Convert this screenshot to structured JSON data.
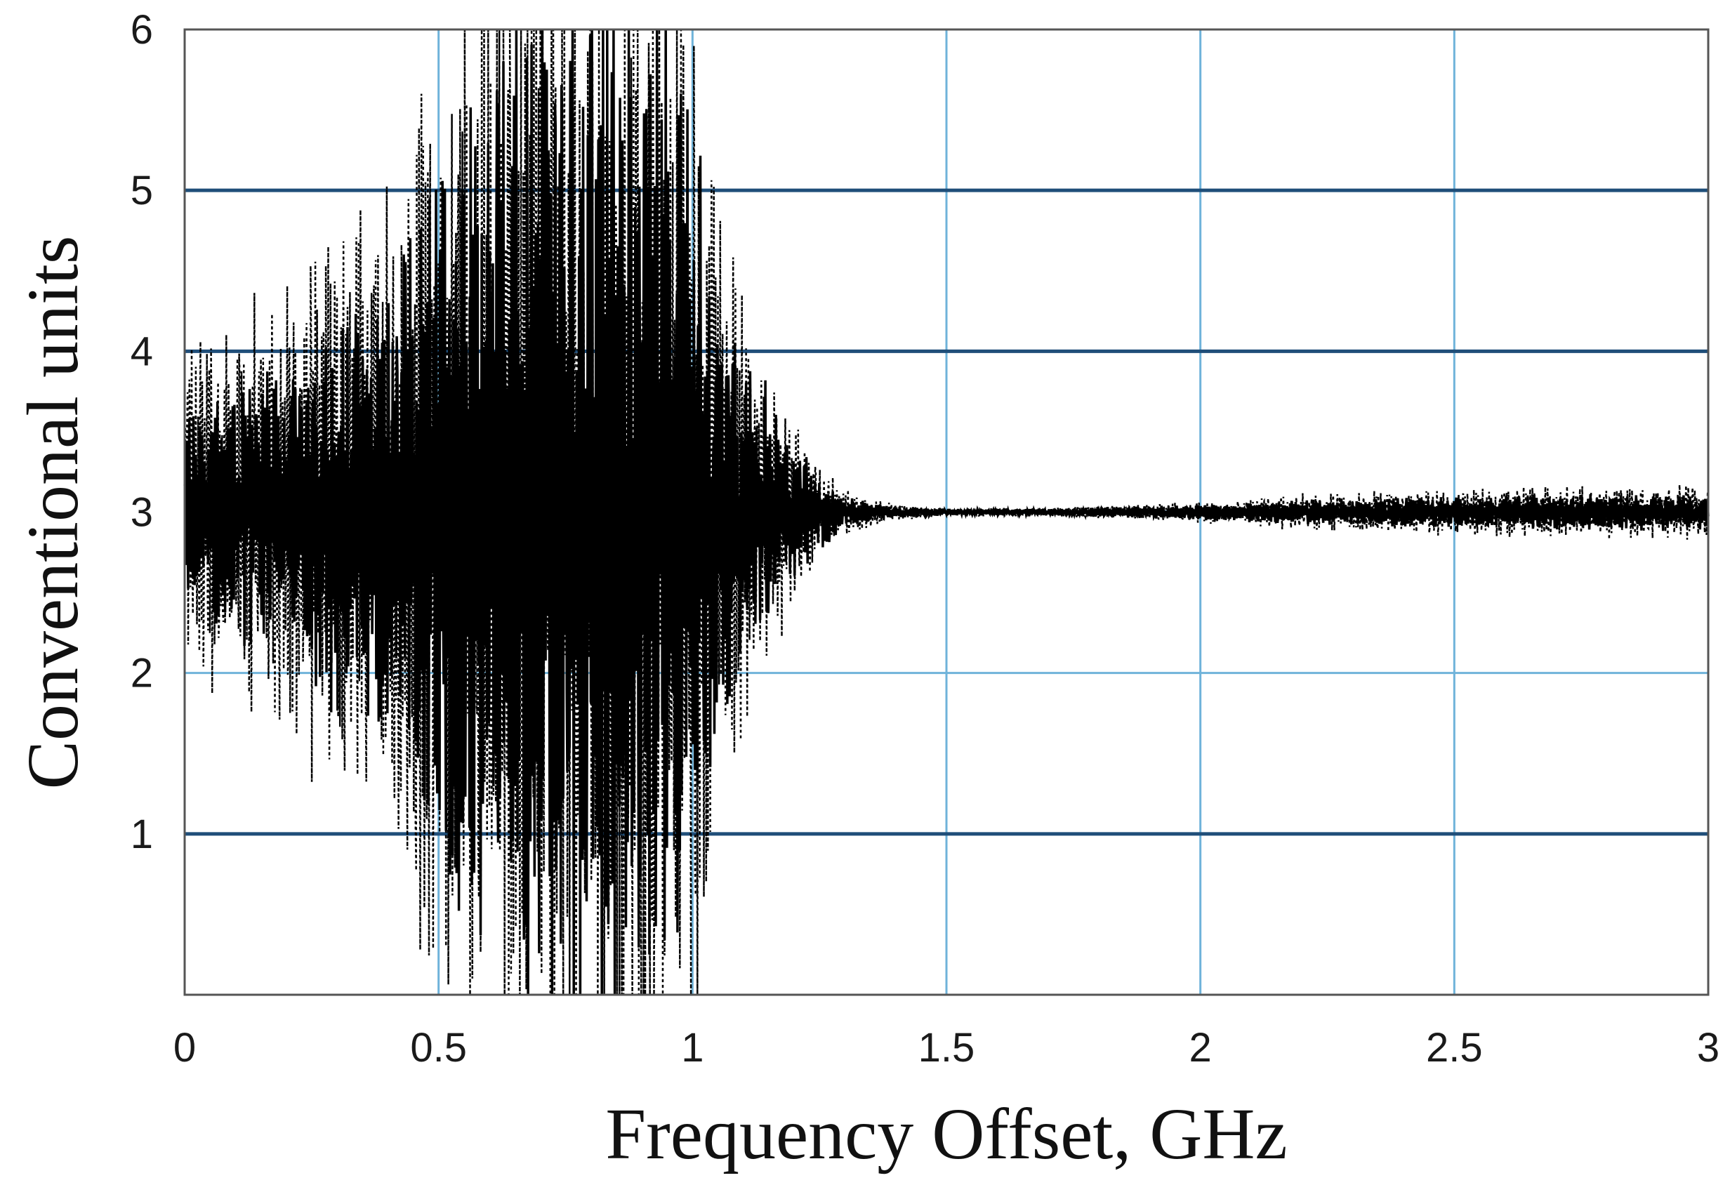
{
  "chart_data": {
    "type": "line",
    "title": "",
    "xlabel": "Frequency Offset, GHz",
    "ylabel": "Conventional units",
    "xlim": [
      0,
      3
    ],
    "ylim": [
      0,
      6
    ],
    "x_ticks": [
      "0",
      "0.5",
      "1",
      "1.5",
      "2",
      "2.5",
      "3"
    ],
    "y_ticks": [
      "1",
      "2",
      "3",
      "4",
      "5",
      "6"
    ],
    "grid": true,
    "legend": "none",
    "colors": {
      "grid_major": "#1f4e79",
      "grid_minor": "#6fb3da",
      "trace": "#000000",
      "frame": "#555555"
    },
    "series": [
      {
        "style": "dotted",
        "baseline": 3,
        "envelope": {
          "x": [
            0,
            0.1,
            0.2,
            0.3,
            0.4,
            0.5,
            0.6,
            0.7,
            0.8,
            0.9,
            1.0,
            1.05,
            1.1,
            1.15,
            1.2,
            1.25,
            1.3,
            1.4,
            1.5,
            1.7,
            1.9,
            2.0,
            2.2,
            2.5,
            2.8,
            3.0
          ],
          "amplitude": [
            1.2,
            1.3,
            1.6,
            1.9,
            2.3,
            3.2,
            3.8,
            4.0,
            4.0,
            4.0,
            4.0,
            2.0,
            1.4,
            1.0,
            0.6,
            0.3,
            0.15,
            0.05,
            0.03,
            0.03,
            0.05,
            0.07,
            0.12,
            0.15,
            0.17,
            0.18
          ]
        }
      },
      {
        "style": "solid",
        "baseline": 3,
        "envelope": {
          "x": [
            0,
            0.1,
            0.2,
            0.3,
            0.4,
            0.5,
            0.6,
            0.7,
            0.8,
            0.9,
            1.0,
            1.05,
            1.1,
            1.15,
            1.2,
            1.25,
            1.3,
            1.4,
            1.5,
            1.7,
            1.9,
            2.0,
            2.2,
            2.5,
            2.8,
            3.0
          ],
          "amplitude": [
            0.6,
            0.8,
            1.0,
            1.3,
            1.6,
            2.2,
            3.0,
            3.5,
            3.6,
            3.5,
            2.5,
            1.6,
            1.0,
            0.8,
            0.5,
            0.25,
            0.1,
            0.04,
            0.02,
            0.02,
            0.04,
            0.05,
            0.08,
            0.1,
            0.12,
            0.12
          ]
        }
      }
    ]
  }
}
